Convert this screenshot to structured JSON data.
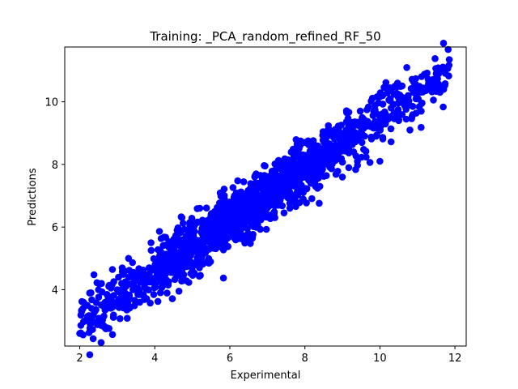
{
  "chart_data": {
    "type": "scatter",
    "title": "Training: _PCA_random_refined_RF_50",
    "xlabel": "Experimental",
    "ylabel": "Predictions",
    "xlim": [
      1.6,
      12.3
    ],
    "ylim": [
      2.2,
      11.75
    ],
    "xticks": [
      2,
      4,
      6,
      8,
      10,
      12
    ],
    "yticks": [
      4,
      6,
      8,
      10
    ],
    "grid": false,
    "legend": "none",
    "series": [
      {
        "color": "#0000ff",
        "marker": "circle",
        "trend": {
          "slope": 0.82,
          "intercept": 1.28,
          "x_range": [
            2.0,
            11.85
          ]
        },
        "x": [
          2.0,
          2.05,
          2.1,
          2.2,
          2.3,
          2.4,
          2.5,
          2.6,
          2.75,
          3.0,
          3.2,
          3.4,
          3.6,
          3.85,
          4.1,
          4.3,
          4.5,
          4.7,
          4.9,
          5.1,
          5.3,
          5.5,
          5.7,
          5.9,
          6.1,
          6.3,
          6.5,
          6.7,
          6.9,
          7.1,
          7.3,
          7.5,
          7.7,
          7.9,
          8.1,
          8.3,
          8.5,
          8.7,
          8.9,
          9.1,
          9.3,
          9.5,
          9.7,
          9.9,
          10.1,
          10.3,
          10.5,
          10.7,
          10.9,
          11.1,
          11.3,
          11.5,
          11.7,
          11.85,
          3.3,
          3.9,
          4.6,
          5.2,
          6.0,
          6.7,
          7.4,
          8.0,
          8.8,
          9.6,
          10.4,
          11.0,
          3.6,
          4.2,
          5.4,
          6.2,
          7.6,
          8.4,
          9.0,
          10.0,
          2.5,
          3.7,
          5.0,
          6.4,
          7.2,
          8.6,
          9.4,
          10.8,
          11.6
        ],
        "y": [
          2.6,
          3.3,
          3.6,
          3.5,
          3.9,
          3.3,
          4.2,
          3.5,
          3.8,
          4.0,
          4.1,
          4.5,
          3.9,
          4.7,
          4.5,
          4.9,
          5.0,
          5.2,
          5.4,
          5.3,
          5.6,
          5.8,
          5.5,
          6.1,
          6.3,
          6.0,
          6.6,
          6.8,
          6.5,
          7.1,
          7.4,
          7.0,
          7.6,
          7.9,
          7.5,
          8.1,
          8.3,
          8.0,
          8.6,
          8.8,
          8.4,
          9.2,
          9.3,
          8.9,
          9.6,
          9.8,
          9.4,
          10.0,
          10.3,
          9.7,
          10.6,
          10.9,
          10.4,
          11.35,
          5.0,
          5.5,
          5.6,
          6.6,
          6.8,
          7.7,
          7.8,
          8.7,
          9.1,
          9.2,
          10.5,
          10.1,
          3.6,
          4.1,
          4.9,
          5.7,
          6.6,
          7.3,
          7.6,
          8.1,
          4.0,
          4.4,
          4.6,
          5.6,
          6.3,
          8.0,
          8.1,
          9.1,
          10.3
        ]
      }
    ]
  }
}
